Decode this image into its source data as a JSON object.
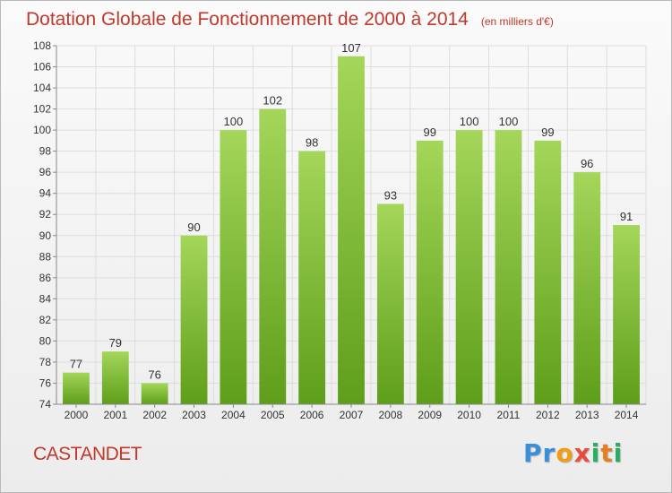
{
  "title": {
    "main": "Dotation Globale de Fonctionnement de 2000 à 2014",
    "unit": "(en milliers d'€)"
  },
  "commune": "CASTANDET",
  "logo": {
    "letters": [
      {
        "char": "P",
        "color": "#3a8fd8"
      },
      {
        "char": "r",
        "color": "#3a8fd8"
      },
      {
        "char": "o",
        "color": "#f39c12"
      },
      {
        "char": "x",
        "color": "#e74c3c"
      },
      {
        "char": "i",
        "color": "#27ae60"
      },
      {
        "char": "t",
        "color": "#e67e22"
      },
      {
        "char": "i",
        "color": "#27ae60"
      }
    ]
  },
  "colors": {
    "bar_top": "#a4d65a",
    "bar_bottom": "#5e9e1a",
    "grid": "#dddddd",
    "axis": "#888888"
  },
  "chart_data": {
    "type": "bar",
    "title": "Dotation Globale de Fonctionnement de 2000 à 2014",
    "subtitle": "(en milliers d'€)",
    "xlabel": "",
    "ylabel": "",
    "categories": [
      "2000",
      "2001",
      "2002",
      "2003",
      "2004",
      "2005",
      "2006",
      "2007",
      "2008",
      "2009",
      "2010",
      "2011",
      "2012",
      "2013",
      "2014"
    ],
    "values": [
      77,
      79,
      76,
      90,
      100,
      102,
      98,
      107,
      93,
      99,
      100,
      100,
      99,
      96,
      91
    ],
    "ylim": [
      74,
      108
    ],
    "yticks": [
      74,
      76,
      78,
      80,
      82,
      84,
      86,
      88,
      90,
      92,
      94,
      96,
      98,
      100,
      102,
      104,
      106,
      108
    ],
    "grid": true,
    "legend": "none"
  }
}
